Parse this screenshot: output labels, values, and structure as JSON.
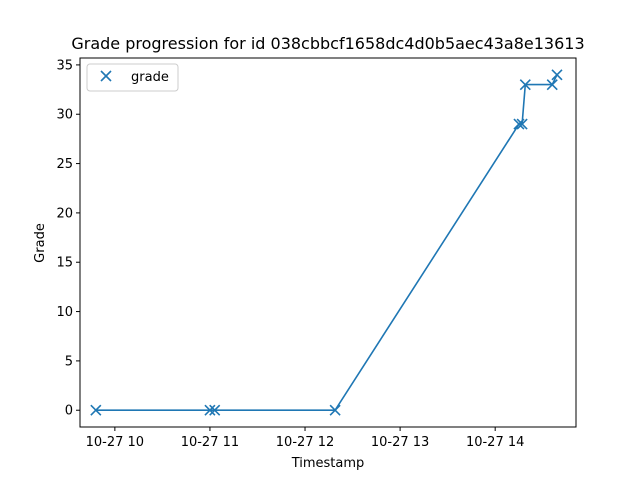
{
  "chart_data": {
    "type": "line",
    "title": "Grade progression for id 038cbbcf1658dc4d0b5aec43a8e13613",
    "xlabel": "Timestamp",
    "ylabel": "Grade",
    "xlim": [
      "10-27 09:38",
      "10-27 14:51"
    ],
    "ylim": [
      -1.7,
      35.7
    ],
    "xticks": [
      {
        "label": "10-27 10",
        "time": "10-27 10:00"
      },
      {
        "label": "10-27 11",
        "time": "10-27 11:00"
      },
      {
        "label": "10-27 12",
        "time": "10-27 12:00"
      },
      {
        "label": "10-27 13",
        "time": "10-27 13:00"
      },
      {
        "label": "10-27 14",
        "time": "10-27 14:00"
      }
    ],
    "yticks": [
      0,
      5,
      10,
      15,
      20,
      25,
      30,
      35
    ],
    "grid": false,
    "legend": {
      "position": "top-left",
      "entries": [
        "grade"
      ]
    },
    "series": [
      {
        "name": "grade",
        "color": "#1f77b4",
        "marker": "x",
        "points": [
          {
            "x": "10-27 09:48",
            "y": 0
          },
          {
            "x": "10-27 11:00",
            "y": 0
          },
          {
            "x": "10-27 11:03",
            "y": 0
          },
          {
            "x": "10-27 12:19",
            "y": 0
          },
          {
            "x": "10-27 14:15",
            "y": 29
          },
          {
            "x": "10-27 14:17",
            "y": 29
          },
          {
            "x": "10-27 14:19",
            "y": 33
          },
          {
            "x": "10-27 14:36",
            "y": 33
          },
          {
            "x": "10-27 14:39",
            "y": 34
          }
        ]
      }
    ]
  }
}
